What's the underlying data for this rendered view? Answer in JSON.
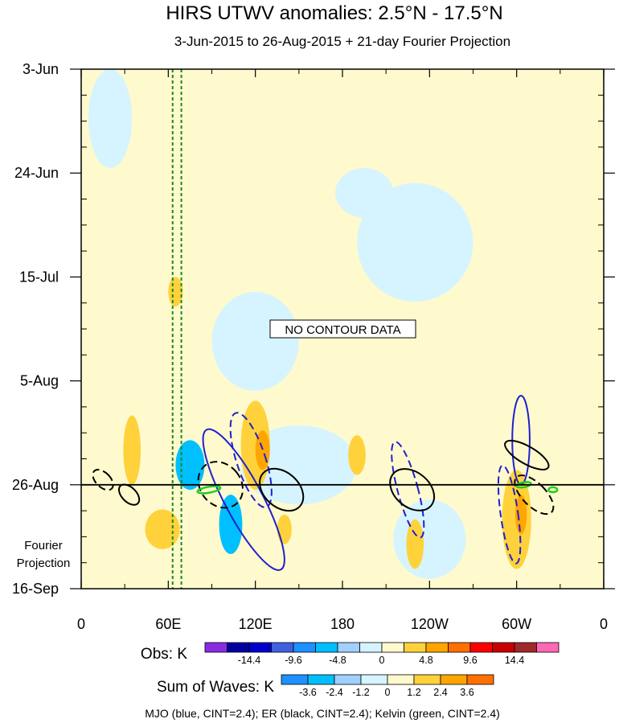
{
  "chart_data": {
    "type": "heatmap",
    "title": "HIRS UTWV anomalies: 2.5°N - 17.5°N",
    "subtitle": "3-Jun-2015 to 26-Aug-2015 + 21-day Fourier Projection",
    "x_ticks": [
      {
        "lon": 0,
        "label": "0"
      },
      {
        "lon": 60,
        "label": "60E"
      },
      {
        "lon": 120,
        "label": "120E"
      },
      {
        "lon": 180,
        "label": "180"
      },
      {
        "lon": 240,
        "label": "120W"
      },
      {
        "lon": 300,
        "label": "60W"
      },
      {
        "lon": 360,
        "label": "0"
      }
    ],
    "y_ticks": [
      {
        "day": 0,
        "label": "3-Jun"
      },
      {
        "day": 21,
        "label": "24-Jun"
      },
      {
        "day": 42,
        "label": "15-Jul"
      },
      {
        "day": 63,
        "label": "5-Aug"
      },
      {
        "day": 84,
        "label": "26-Aug"
      },
      {
        "day": 105,
        "label": "16-Sep"
      }
    ],
    "xlim": [
      0,
      360
    ],
    "ylim": [
      0,
      105
    ],
    "projection_start_day": 84,
    "projection_label": "Fourier\nProjection",
    "no_contour_text": "NO CONTOUR DATA",
    "reference_lines_lon": [
      63,
      69
    ],
    "obs_colorbar": {
      "label": "Obs: K",
      "colors": [
        "#8a2be2",
        "#0000a0",
        "#0000cd",
        "#4060e0",
        "#1e90ff",
        "#00bfff",
        "#9fd0ff",
        "#d6f4ff",
        "#fffacd",
        "#ffd23c",
        "#ffa500",
        "#ff7000",
        "#ff0000",
        "#c80000",
        "#a02828",
        "#ff69b4"
      ],
      "ticks": [
        "-14.4",
        "-9.6",
        "-4.8",
        "0",
        "4.8",
        "9.6",
        "14.4"
      ]
    },
    "waves_colorbar": {
      "label": "Sum of Waves: K",
      "colors": [
        "#1e90ff",
        "#00bfff",
        "#9fd0ff",
        "#d6f4ff",
        "#fffacd",
        "#ffd23c",
        "#ffa500",
        "#ff7000"
      ],
      "ticks": [
        "-3.6",
        "-2.4",
        "-1.2",
        "0",
        "1.2",
        "2.4",
        "3.6"
      ]
    },
    "footer": "MJO (blue, CINT=2.4); ER (black, CINT=2.4); Kelvin (green, CINT=2.4)",
    "series": [
      {
        "name": "MJO",
        "color": "#1f1fcf",
        "contours": [
          {
            "lon": 117,
            "day": 79,
            "rlon": 10,
            "rday": 10,
            "angle": -18,
            "dashed": true
          },
          {
            "lon": 112,
            "day": 87,
            "rlon": 13,
            "rday": 16,
            "angle": -28,
            "dashed": false
          },
          {
            "lon": 225,
            "day": 85,
            "rlon": 7,
            "rday": 10,
            "angle": -15,
            "dashed": true
          },
          {
            "lon": 303,
            "day": 75,
            "rlon": 6,
            "rday": 9,
            "angle": 0,
            "dashed": false
          },
          {
            "lon": 295,
            "day": 90,
            "rlon": 6,
            "rday": 10,
            "angle": -8,
            "dashed": true
          }
        ]
      },
      {
        "name": "ER",
        "color": "#000000",
        "contours": [
          {
            "lon": 15,
            "day": 83,
            "rlon": 5,
            "rday": 2.5,
            "angle": -45,
            "dashed": true
          },
          {
            "lon": 33,
            "day": 86,
            "rlon": 5,
            "rday": 2.5,
            "angle": -45,
            "dashed": false
          },
          {
            "lon": 96,
            "day": 84,
            "rlon": 14,
            "rday": 5,
            "angle": -40,
            "dashed": true
          },
          {
            "lon": 138,
            "day": 85,
            "rlon": 12,
            "rday": 5,
            "angle": -48,
            "dashed": false
          },
          {
            "lon": 228,
            "day": 85,
            "rlon": 12,
            "rday": 5,
            "angle": -50,
            "dashed": false
          },
          {
            "lon": 307,
            "day": 78,
            "rlon": 6,
            "rday": 5,
            "angle": -60,
            "dashed": false
          },
          {
            "lon": 312,
            "day": 86,
            "rlon": 8,
            "rday": 5,
            "angle": -45,
            "dashed": true
          }
        ]
      },
      {
        "name": "Kelvin",
        "color": "#22cc22",
        "contours": [
          {
            "lon": 88,
            "day": 85,
            "rlon": 8,
            "rday": 0.6,
            "angle": -10,
            "dashed": false
          },
          {
            "lon": 305,
            "day": 84,
            "rlon": 5,
            "rday": 0.5,
            "angle": -10,
            "dashed": false
          },
          {
            "lon": 325,
            "day": 85,
            "rlon": 3,
            "rday": 0.5,
            "angle": 0,
            "dashed": false
          }
        ]
      }
    ],
    "anomaly_regions": [
      {
        "lon": 195,
        "day": 25,
        "rlon": 20,
        "rday": 5,
        "level": "-1.2"
      },
      {
        "lon": 120,
        "day": 55,
        "rlon": 30,
        "rday": 10,
        "level": "-1.2"
      },
      {
        "lon": 230,
        "day": 35,
        "rlon": 40,
        "rday": 12,
        "level": "-1.2"
      },
      {
        "lon": 150,
        "day": 80,
        "rlon": 40,
        "rday": 8,
        "level": "-1.2"
      },
      {
        "lon": 20,
        "day": 10,
        "rlon": 15,
        "rday": 10,
        "level": "-1.2"
      },
      {
        "lon": 240,
        "day": 95,
        "rlon": 25,
        "rday": 8,
        "level": "-1.2"
      },
      {
        "lon": 75,
        "day": 80,
        "rlon": 10,
        "rday": 5,
        "level": "-2.4"
      },
      {
        "lon": 103,
        "day": 92,
        "rlon": 8,
        "rday": 6,
        "level": "-2.4"
      },
      {
        "lon": 120,
        "day": 76,
        "rlon": 10,
        "rday": 9,
        "level": "1.2"
      },
      {
        "lon": 125,
        "day": 77,
        "rlon": 5,
        "rday": 4,
        "level": "2.4"
      },
      {
        "lon": 300,
        "day": 91,
        "rlon": 10,
        "rday": 10,
        "level": "1.2"
      },
      {
        "lon": 303,
        "day": 90,
        "rlon": 4,
        "rday": 4,
        "level": "2.4"
      },
      {
        "lon": 35,
        "day": 77,
        "rlon": 6,
        "rday": 7,
        "level": "1.2"
      },
      {
        "lon": 56,
        "day": 93,
        "rlon": 12,
        "rday": 4,
        "level": "1.2"
      },
      {
        "lon": 190,
        "day": 78,
        "rlon": 6,
        "rday": 4,
        "level": "1.2"
      },
      {
        "lon": 230,
        "day": 96,
        "rlon": 6,
        "rday": 5,
        "level": "1.2"
      },
      {
        "lon": 140,
        "day": 93,
        "rlon": 5,
        "rday": 3,
        "level": "1.2"
      },
      {
        "lon": 65,
        "day": 45,
        "rlon": 5,
        "rday": 3,
        "level": "1.2"
      }
    ]
  }
}
